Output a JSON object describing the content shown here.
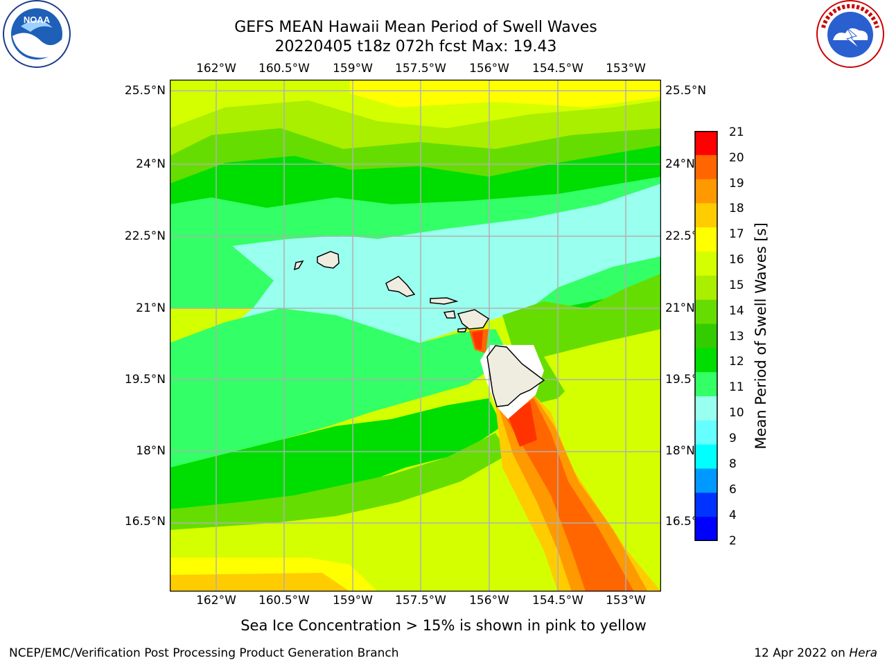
{
  "header": {
    "title_line1": "GEFS MEAN Hawaii Mean Period of Swell Waves",
    "title_line2": "20220405 t18z 072h fcst   Max: 19.43"
  },
  "logos": {
    "left": "noaa-logo",
    "right": "national-weather-service-logo"
  },
  "map": {
    "lon_ticks": [
      "162°W",
      "160.5°W",
      "159°W",
      "157.5°W",
      "156°W",
      "154.5°W",
      "153°W"
    ],
    "lat_ticks_left": [
      "25.5°N",
      "24°N",
      "22.5°N",
      "21°N",
      "19.5°N",
      "18°N",
      "16.5°N"
    ],
    "lat_ticks_right": [
      "25.5°N",
      "24°N",
      "22.5°N",
      "21°N",
      "19.5°N",
      "18°N",
      "16.5°N"
    ]
  },
  "colorbar": {
    "label": "Mean Period of Swell Waves [s]",
    "ticks": [
      "21",
      "20",
      "19",
      "18",
      "17",
      "16",
      "15",
      "14",
      "13",
      "12",
      "11",
      "10",
      "9",
      "8",
      "6",
      "4",
      "2"
    ],
    "colors": [
      "#ff0000",
      "#ff3300",
      "#ff6600",
      "#ff9900",
      "#ffcc00",
      "#ffff00",
      "#d4ff00",
      "#aaee00",
      "#66dd00",
      "#33cc00",
      "#00dd00",
      "#33ff66",
      "#99ffee",
      "#66ffff",
      "#00ffff",
      "#0099ff",
      "#0033ff",
      "#0000ff"
    ]
  },
  "note": "Sea Ice Concentration > 15% is shown in pink to yellow",
  "footer": {
    "left": "NCEP/EMC/Verification Post Processing Product Generation Branch",
    "right_prefix": "12 Apr 2022 on",
    "right_host": "Hera"
  }
}
